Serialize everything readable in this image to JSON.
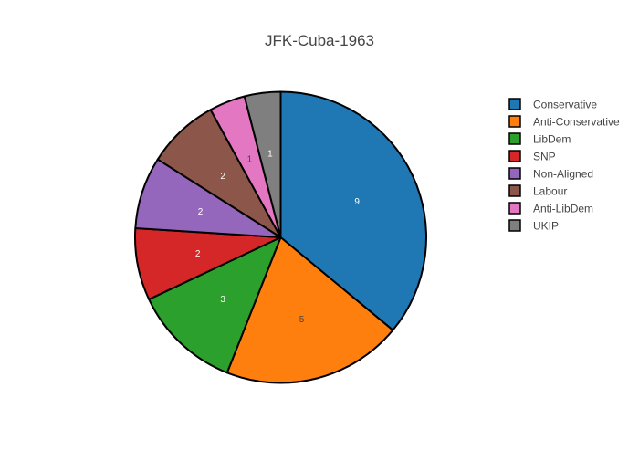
{
  "chart_data": {
    "type": "pie",
    "title": "JFK-Cuba-1963",
    "legend_position": "right",
    "slices": [
      {
        "label": "Conservative",
        "value": 9,
        "color": "#1f77b4"
      },
      {
        "label": "Anti-Conservative",
        "value": 5,
        "color": "#ff7f0e"
      },
      {
        "label": "LibDem",
        "value": 3,
        "color": "#2ca02c"
      },
      {
        "label": "SNP",
        "value": 2,
        "color": "#d62728"
      },
      {
        "label": "Non-Aligned",
        "value": 2,
        "color": "#9467bd"
      },
      {
        "label": "Labour",
        "value": 2,
        "color": "#8c564b"
      },
      {
        "label": "Anti-LibDem",
        "value": 1,
        "color": "#e377c2"
      },
      {
        "label": "UKIP",
        "value": 1,
        "color": "#7f7f7f"
      }
    ],
    "direction": "clockwise",
    "start_angle": "top",
    "label_color_on_dark": "#ffffff",
    "label_color_on_light": "#444444",
    "outline_color": "#000000"
  }
}
